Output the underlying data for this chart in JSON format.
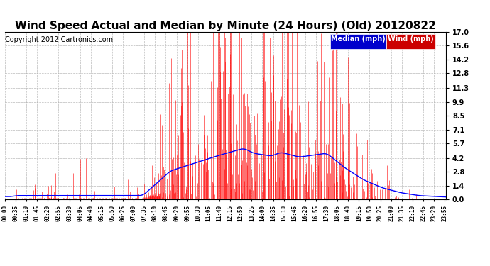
{
  "title": "Wind Speed Actual and Median by Minute (24 Hours) (Old) 20120822",
  "copyright": "Copyright 2012 Cartronics.com",
  "legend_median_label": "Median (mph)",
  "legend_wind_label": "Wind (mph)",
  "legend_median_bg": "#0000cc",
  "legend_wind_bg": "#cc0000",
  "bar_color": "#ff0000",
  "line_color": "#0000ff",
  "background_color": "#ffffff",
  "grid_color": "#aaaaaa",
  "yticks": [
    0.0,
    1.4,
    2.8,
    4.2,
    5.7,
    7.1,
    8.5,
    9.9,
    11.3,
    12.8,
    14.2,
    15.6,
    17.0
  ],
  "ymax": 17.0,
  "ymin": 0.0,
  "title_fontsize": 11,
  "copyright_fontsize": 7,
  "legend_fontsize": 7
}
